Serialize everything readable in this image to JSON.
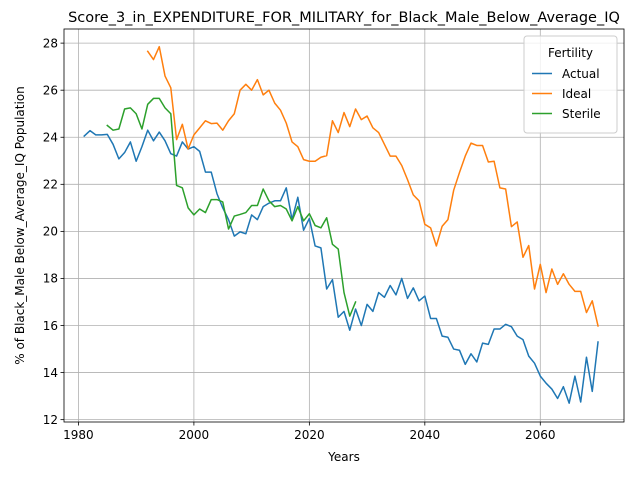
{
  "chart_data": {
    "type": "line",
    "title": "Score_3_in_EXPENDITURE_FOR_MILITARY_for_Black_Male_Below_Average_IQ",
    "xlabel": "Years",
    "ylabel": "% of Black_Male Below_Average_IQ Population",
    "xlim": [
      1977.5,
      2074.5
    ],
    "ylim": [
      11.9,
      28.6
    ],
    "xticks": [
      1980,
      2000,
      2020,
      2040,
      2060
    ],
    "yticks": [
      12,
      14,
      16,
      18,
      20,
      22,
      24,
      26,
      28
    ],
    "grid": true,
    "legend": {
      "title": "Fertility",
      "placement": "top-right"
    },
    "series": [
      {
        "name": "Actual",
        "color": "#1f77b4",
        "x": [
          1981,
          1982,
          1983,
          1984,
          1985,
          1986,
          1987,
          1988,
          1989,
          1990,
          1991,
          1992,
          1993,
          1994,
          1995,
          1996,
          1997,
          1998,
          1999,
          2000,
          2001,
          2002,
          2003,
          2004,
          2005,
          2006,
          2007,
          2008,
          2009,
          2010,
          2011,
          2012,
          2013,
          2014,
          2015,
          2016,
          2017,
          2018,
          2019,
          2020,
          2021,
          2022,
          2023,
          2024,
          2025,
          2026,
          2027,
          2028,
          2029,
          2030,
          2031,
          2032,
          2033,
          2034,
          2035,
          2036,
          2037,
          2038,
          2039,
          2040,
          2041,
          2042,
          2043,
          2044,
          2045,
          2046,
          2047,
          2048,
          2049,
          2050,
          2051,
          2052,
          2053,
          2054,
          2055,
          2056,
          2057,
          2058,
          2059,
          2060,
          2061,
          2062,
          2063,
          2064,
          2065,
          2066,
          2067,
          2068,
          2069,
          2070
        ],
        "values": [
          24.05,
          24.28,
          24.1,
          24.1,
          24.12,
          23.7,
          23.08,
          23.35,
          23.8,
          22.98,
          23.6,
          24.3,
          23.85,
          24.22,
          23.85,
          23.3,
          23.2,
          23.8,
          23.5,
          23.6,
          23.4,
          22.52,
          22.52,
          21.6,
          21.0,
          20.5,
          19.8,
          19.98,
          19.9,
          20.7,
          20.5,
          21.05,
          21.2,
          21.3,
          21.3,
          21.85,
          20.5,
          21.45,
          20.05,
          20.55,
          19.38,
          19.3,
          17.55,
          17.95,
          16.35,
          16.6,
          15.8,
          16.7,
          16.0,
          16.9,
          16.6,
          17.4,
          17.2,
          17.7,
          17.3,
          18.0,
          17.15,
          17.6,
          17.05,
          17.25,
          16.3,
          16.3,
          15.55,
          15.5,
          15.0,
          14.95,
          14.35,
          14.8,
          14.45,
          15.25,
          15.2,
          15.85,
          15.85,
          16.05,
          15.95,
          15.55,
          15.4,
          14.7,
          14.4,
          13.85,
          13.55,
          13.3,
          12.9,
          13.4,
          12.7,
          13.85,
          12.75,
          14.65,
          13.2,
          15.3
        ]
      },
      {
        "name": "Ideal",
        "color": "#ff7f0e",
        "x": [
          1992,
          1993,
          1994,
          1995,
          1996,
          1997,
          1998,
          1999,
          2000,
          2001,
          2002,
          2003,
          2004,
          2005,
          2006,
          2007,
          2008,
          2009,
          2010,
          2011,
          2012,
          2013,
          2014,
          2015,
          2016,
          2017,
          2018,
          2019,
          2020,
          2021,
          2022,
          2023,
          2024,
          2025,
          2026,
          2027,
          2028,
          2029,
          2030,
          2031,
          2032,
          2033,
          2034,
          2035,
          2036,
          2037,
          2038,
          2039,
          2040,
          2041,
          2042,
          2043,
          2044,
          2045,
          2046,
          2047,
          2048,
          2049,
          2050,
          2051,
          2052,
          2053,
          2054,
          2055,
          2056,
          2057,
          2058,
          2059,
          2060,
          2061,
          2062,
          2063,
          2064,
          2065,
          2066,
          2067,
          2068,
          2069,
          2070
        ],
        "values": [
          27.65,
          27.3,
          27.85,
          26.6,
          26.1,
          23.9,
          24.55,
          23.5,
          24.1,
          24.4,
          24.7,
          24.58,
          24.6,
          24.3,
          24.7,
          25.0,
          26.0,
          26.25,
          26.0,
          26.45,
          25.8,
          26.0,
          25.45,
          25.15,
          24.6,
          23.8,
          23.6,
          23.05,
          22.98,
          22.98,
          23.15,
          23.22,
          24.7,
          24.2,
          25.05,
          24.45,
          25.2,
          24.75,
          24.9,
          24.4,
          24.2,
          23.7,
          23.2,
          23.2,
          22.8,
          22.2,
          21.55,
          21.3,
          20.3,
          20.15,
          19.38,
          20.22,
          20.5,
          21.75,
          22.5,
          23.2,
          23.75,
          23.65,
          23.65,
          22.95,
          22.98,
          21.85,
          21.8,
          20.2,
          20.4,
          18.9,
          19.4,
          17.55,
          18.6,
          17.4,
          18.4,
          17.75,
          18.2,
          17.75,
          17.45,
          17.45,
          16.55,
          17.05,
          15.98
        ]
      },
      {
        "name": "Sterile",
        "color": "#2ca02c",
        "x": [
          1985,
          1986,
          1987,
          1988,
          1989,
          1990,
          1991,
          1992,
          1993,
          1994,
          1995,
          1996,
          1997,
          1998,
          1999,
          2000,
          2001,
          2002,
          2003,
          2004,
          2005,
          2006,
          2007,
          2008,
          2009,
          2010,
          2011,
          2012,
          2013,
          2014,
          2015,
          2016,
          2017,
          2018,
          2019,
          2020,
          2021,
          2022,
          2023,
          2024,
          2025,
          2026,
          2027,
          2028
        ],
        "values": [
          24.5,
          24.3,
          24.35,
          25.2,
          25.25,
          25.0,
          24.35,
          25.4,
          25.65,
          25.65,
          25.25,
          25.0,
          21.95,
          21.85,
          21.0,
          20.7,
          20.95,
          20.8,
          21.35,
          21.35,
          21.25,
          20.1,
          20.65,
          20.72,
          20.8,
          21.1,
          21.1,
          21.8,
          21.3,
          21.05,
          21.1,
          20.95,
          20.45,
          21.05,
          20.45,
          20.75,
          20.25,
          20.15,
          20.58,
          19.45,
          19.25,
          17.4,
          16.4,
          17.0
        ]
      }
    ]
  }
}
